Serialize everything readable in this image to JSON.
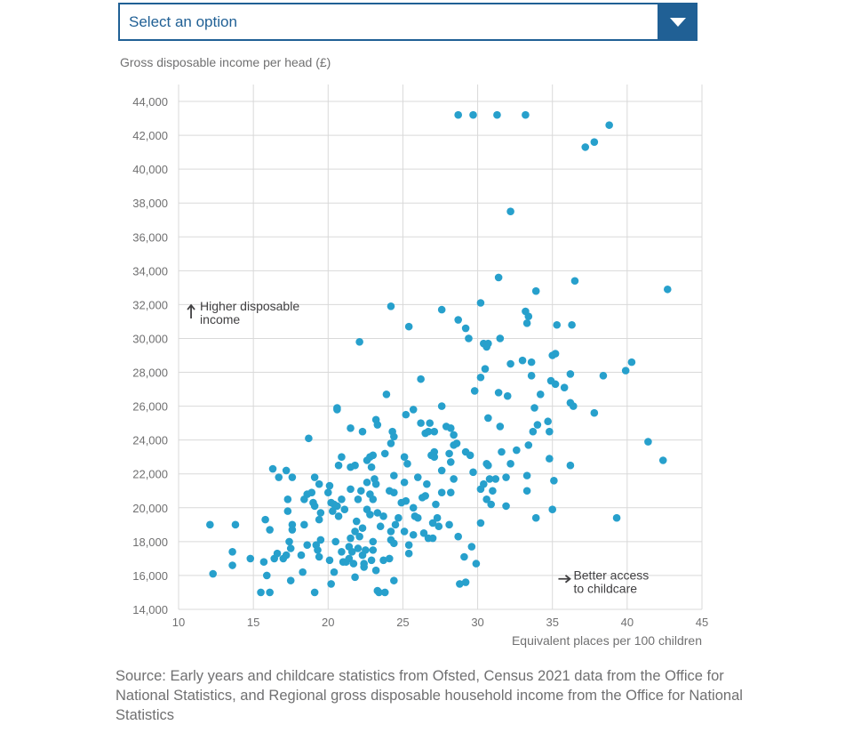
{
  "dropdown": {
    "label": "Select an option"
  },
  "footer": {
    "source": "Source: Early years and childcare statistics from Ofsted, Census 2021 data from the Office for National Statistics, and Regional gross disposable household income from the Office for National Statistics"
  },
  "colors": {
    "accent": "#206095",
    "points": "#27a0cc",
    "grid": "#d9d9d9",
    "axis_text": "#707071",
    "annotation_text": "#414042"
  },
  "chart_data": {
    "type": "scatter",
    "xlabel": "Equivalent places per 100 children",
    "ylabel": "Gross disposable income per head (£)",
    "xlim": [
      10,
      45
    ],
    "ylim": [
      14000,
      44000
    ],
    "x_ticks": [
      10,
      15,
      20,
      25,
      30,
      35,
      40,
      45
    ],
    "x_tick_labels": [
      "10",
      "15",
      "20",
      "25",
      "30",
      "35",
      "40",
      "45"
    ],
    "y_ticks": [
      14000,
      16000,
      18000,
      20000,
      22000,
      24000,
      26000,
      28000,
      30000,
      32000,
      34000,
      36000,
      38000,
      40000,
      42000,
      44000
    ],
    "y_tick_labels": [
      "14,000",
      "16,000",
      "18,000",
      "20,000",
      "22,000",
      "24,000",
      "26,000",
      "28,000",
      "30,000",
      "32,000",
      "34,000",
      "36,000",
      "38,000",
      "40,000",
      "42,000",
      "44,000"
    ],
    "grid": true,
    "annotations": [
      {
        "id": "higher-income",
        "lines": [
          "Higher disposable",
          "income"
        ],
        "arrow": "up",
        "x": 10.3,
        "y": 31600
      },
      {
        "id": "better-access",
        "lines": [
          "Better access",
          "to childcare"
        ],
        "arrow": "right",
        "x": 35.4,
        "y": 15800
      }
    ],
    "points": [
      [
        28.7,
        43200
      ],
      [
        29.7,
        43200
      ],
      [
        31.3,
        43200
      ],
      [
        33.2,
        43200
      ],
      [
        38.8,
        42600
      ],
      [
        37.8,
        41600
      ],
      [
        37.2,
        41300
      ],
      [
        32.2,
        37500
      ],
      [
        31.4,
        33600
      ],
      [
        36.5,
        33400
      ],
      [
        42.7,
        32900
      ],
      [
        33.9,
        32800
      ],
      [
        30.2,
        32100
      ],
      [
        24.2,
        31900
      ],
      [
        33.2,
        31600
      ],
      [
        27.6,
        31700
      ],
      [
        33.4,
        31300
      ],
      [
        28.7,
        31100
      ],
      [
        33.3,
        30900
      ],
      [
        35.3,
        30800
      ],
      [
        36.3,
        30800
      ],
      [
        25.4,
        30700
      ],
      [
        29.2,
        30600
      ],
      [
        29.4,
        30000
      ],
      [
        31.5,
        30000
      ],
      [
        30.4,
        29700
      ],
      [
        30.7,
        29700
      ],
      [
        30.6,
        29500
      ],
      [
        22.1,
        29800
      ],
      [
        35.2,
        29100
      ],
      [
        35.0,
        29000
      ],
      [
        33.0,
        28700
      ],
      [
        32.2,
        28500
      ],
      [
        33.6,
        28600
      ],
      [
        40.3,
        28600
      ],
      [
        39.9,
        28100
      ],
      [
        30.5,
        28200
      ],
      [
        36.2,
        27900
      ],
      [
        38.4,
        27800
      ],
      [
        33.6,
        27800
      ],
      [
        30.2,
        27700
      ],
      [
        26.2,
        27600
      ],
      [
        34.9,
        27500
      ],
      [
        35.2,
        27300
      ],
      [
        35.8,
        27100
      ],
      [
        29.8,
        26900
      ],
      [
        31.4,
        26800
      ],
      [
        34.2,
        26700
      ],
      [
        32.0,
        26600
      ],
      [
        23.9,
        26700
      ],
      [
        36.2,
        26200
      ],
      [
        36.4,
        26000
      ],
      [
        27.6,
        26000
      ],
      [
        33.8,
        25900
      ],
      [
        20.6,
        25900
      ],
      [
        20.6,
        25800
      ],
      [
        25.7,
        25800
      ],
      [
        37.8,
        25600
      ],
      [
        30.7,
        25300
      ],
      [
        25.2,
        25500
      ],
      [
        23.2,
        25200
      ],
      [
        26.2,
        25000
      ],
      [
        34.7,
        25100
      ],
      [
        26.8,
        25000
      ],
      [
        23.3,
        24900
      ],
      [
        31.5,
        24800
      ],
      [
        27.9,
        24800
      ],
      [
        28.2,
        24700
      ],
      [
        21.5,
        24700
      ],
      [
        34.0,
        24900
      ],
      [
        24.3,
        24500
      ],
      [
        22.3,
        24500
      ],
      [
        26.5,
        24400
      ],
      [
        27.1,
        24500
      ],
      [
        26.7,
        24500
      ],
      [
        33.7,
        24500
      ],
      [
        34.8,
        24500
      ],
      [
        24.4,
        24200
      ],
      [
        28.4,
        24300
      ],
      [
        18.7,
        24100
      ],
      [
        28.6,
        23800
      ],
      [
        28.4,
        23700
      ],
      [
        41.4,
        23900
      ],
      [
        24.2,
        23800
      ],
      [
        33.4,
        23700
      ],
      [
        32.6,
        23400
      ],
      [
        31.6,
        23300
      ],
      [
        29.2,
        23300
      ],
      [
        27.1,
        23300
      ],
      [
        29.5,
        23100
      ],
      [
        25.1,
        23000
      ],
      [
        23.8,
        23200
      ],
      [
        28.1,
        23200
      ],
      [
        23.0,
        23100
      ],
      [
        22.8,
        23000
      ],
      [
        26.9,
        23100
      ],
      [
        20.9,
        23000
      ],
      [
        27.1,
        23000
      ],
      [
        22.6,
        22800
      ],
      [
        28.2,
        22700
      ],
      [
        34.8,
        22900
      ],
      [
        42.4,
        22800
      ],
      [
        30.6,
        22600
      ],
      [
        32.2,
        22600
      ],
      [
        36.2,
        22500
      ],
      [
        25.3,
        22600
      ],
      [
        20.7,
        22500
      ],
      [
        21.8,
        22500
      ],
      [
        30.7,
        22500
      ],
      [
        21.5,
        22400
      ],
      [
        16.3,
        22300
      ],
      [
        22.9,
        22400
      ],
      [
        17.2,
        22200
      ],
      [
        27.6,
        22200
      ],
      [
        29.7,
        22100
      ],
      [
        33.3,
        21900
      ],
      [
        31.2,
        21700
      ],
      [
        28.4,
        21700
      ],
      [
        23.1,
        21700
      ],
      [
        26.0,
        21800
      ],
      [
        24.4,
        21900
      ],
      [
        17.6,
        21800
      ],
      [
        19.1,
        21800
      ],
      [
        31.9,
        21800
      ],
      [
        30.8,
        21700
      ],
      [
        30.4,
        21400
      ],
      [
        23.2,
        21400
      ],
      [
        22.6,
        21500
      ],
      [
        25.1,
        21500
      ],
      [
        20.1,
        21300
      ],
      [
        26.6,
        21400
      ],
      [
        16.7,
        21800
      ],
      [
        19.4,
        21400
      ],
      [
        22.2,
        21000
      ],
      [
        35.1,
        21600
      ],
      [
        33.3,
        21000
      ],
      [
        30.2,
        21100
      ],
      [
        31.0,
        21000
      ],
      [
        28.2,
        20900
      ],
      [
        27.6,
        20900
      ],
      [
        24.1,
        21000
      ],
      [
        24.4,
        20900
      ],
      [
        21.5,
        21100
      ],
      [
        18.9,
        20900
      ],
      [
        20.0,
        20900
      ],
      [
        18.6,
        20800
      ],
      [
        22.0,
        20500
      ],
      [
        22.8,
        20800
      ],
      [
        25.2,
        20400
      ],
      [
        26.3,
        20600
      ],
      [
        20.9,
        20500
      ],
      [
        23.0,
        20500
      ],
      [
        18.4,
        20500
      ],
      [
        24.9,
        20300
      ],
      [
        19.0,
        20300
      ],
      [
        19.1,
        20100
      ],
      [
        17.3,
        20500
      ],
      [
        20.2,
        20300
      ],
      [
        20.4,
        20200
      ],
      [
        20.6,
        20100
      ],
      [
        27.2,
        20200
      ],
      [
        26.5,
        20700
      ],
      [
        30.9,
        20200
      ],
      [
        31.9,
        20100
      ],
      [
        30.6,
        20500
      ],
      [
        21.1,
        19900
      ],
      [
        22.6,
        19900
      ],
      [
        25.7,
        20000
      ],
      [
        20.3,
        19800
      ],
      [
        23.3,
        19700
      ],
      [
        19.5,
        19700
      ],
      [
        17.3,
        19800
      ],
      [
        22.8,
        19600
      ],
      [
        20.7,
        19500
      ],
      [
        23.7,
        19500
      ],
      [
        25.8,
        19500
      ],
      [
        24.7,
        19400
      ],
      [
        27.3,
        19400
      ],
      [
        35.0,
        19900
      ],
      [
        33.9,
        19400
      ],
      [
        39.3,
        19400
      ],
      [
        19.4,
        19300
      ],
      [
        26.0,
        19400
      ],
      [
        15.8,
        19300
      ],
      [
        21.9,
        19200
      ],
      [
        27.0,
        19100
      ],
      [
        30.2,
        19100
      ],
      [
        28.1,
        19000
      ],
      [
        24.5,
        19000
      ],
      [
        23.5,
        18900
      ],
      [
        12.1,
        19000
      ],
      [
        13.8,
        19000
      ],
      [
        18.4,
        19000
      ],
      [
        17.6,
        19000
      ],
      [
        27.4,
        18900
      ],
      [
        22.3,
        18800
      ],
      [
        17.6,
        18700
      ],
      [
        16.1,
        18700
      ],
      [
        21.8,
        18600
      ],
      [
        24.2,
        18600
      ],
      [
        25.7,
        18400
      ],
      [
        27.0,
        18200
      ],
      [
        22.1,
        18300
      ],
      [
        21.5,
        18200
      ],
      [
        26.7,
        18200
      ],
      [
        19.5,
        18100
      ],
      [
        24.2,
        18100
      ],
      [
        23.0,
        18000
      ],
      [
        17.4,
        18000
      ],
      [
        20.5,
        18000
      ],
      [
        24.4,
        17900
      ],
      [
        25.4,
        17800
      ],
      [
        19.2,
        17800
      ],
      [
        18.6,
        17800
      ],
      [
        21.4,
        17700
      ],
      [
        29.6,
        17700
      ],
      [
        17.5,
        17600
      ],
      [
        22.0,
        17600
      ],
      [
        23.0,
        17500
      ],
      [
        22.5,
        17500
      ],
      [
        20.9,
        17400
      ],
      [
        21.6,
        17400
      ],
      [
        25.4,
        17300
      ],
      [
        13.6,
        17400
      ],
      [
        16.6,
        17300
      ],
      [
        17.2,
        17200
      ],
      [
        18.2,
        17200
      ],
      [
        22.3,
        17200
      ],
      [
        29.1,
        17100
      ],
      [
        19.4,
        17100
      ],
      [
        21.4,
        17000
      ],
      [
        24.1,
        17000
      ],
      [
        16.4,
        17000
      ],
      [
        22.9,
        16900
      ],
      [
        23.7,
        16900
      ],
      [
        14.8,
        17000
      ],
      [
        17.0,
        17000
      ],
      [
        21.0,
        16800
      ],
      [
        21.2,
        16800
      ],
      [
        21.7,
        16700
      ],
      [
        13.6,
        16600
      ],
      [
        15.7,
        16800
      ],
      [
        29.9,
        16700
      ],
      [
        22.4,
        16500
      ],
      [
        23.2,
        16300
      ],
      [
        18.3,
        16200
      ],
      [
        20.4,
        16200
      ],
      [
        12.3,
        16100
      ],
      [
        15.9,
        16000
      ],
      [
        17.5,
        15700
      ],
      [
        24.4,
        15700
      ],
      [
        21.8,
        15900
      ],
      [
        29.2,
        15600
      ],
      [
        28.8,
        15500
      ],
      [
        20.2,
        15500
      ],
      [
        23.3,
        15100
      ],
      [
        15.5,
        15000
      ],
      [
        16.1,
        15000
      ],
      [
        23.4,
        15000
      ],
      [
        19.1,
        15000
      ],
      [
        23.8,
        15000
      ],
      [
        22.4,
        16700
      ],
      [
        20.1,
        16900
      ],
      [
        19.3,
        17500
      ],
      [
        25.1,
        18600
      ],
      [
        26.4,
        18500
      ],
      [
        28.7,
        18300
      ]
    ]
  }
}
